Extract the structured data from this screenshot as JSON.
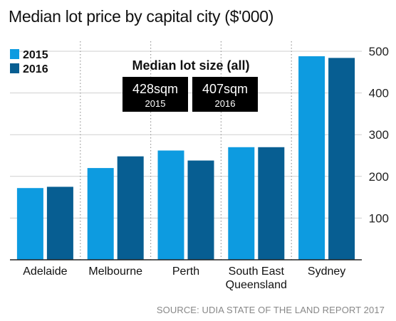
{
  "chart_data": {
    "type": "bar",
    "title": "Median lot price by capital city ($'000)",
    "categories": [
      "Adelaide",
      "Melbourne",
      "Perth",
      "South East Queensland",
      "Sydney"
    ],
    "category_lines": [
      [
        "Adelaide"
      ],
      [
        "Melbourne"
      ],
      [
        "Perth"
      ],
      [
        "South East",
        "Queensland"
      ],
      [
        "Sydney"
      ]
    ],
    "series": [
      {
        "name": "2015",
        "values": [
          172,
          220,
          262,
          270,
          488
        ]
      },
      {
        "name": "2016",
        "values": [
          175,
          248,
          238,
          270,
          484
        ]
      }
    ],
    "colors": [
      "#0d9be0",
      "#075e92"
    ],
    "ylim": [
      0,
      500
    ],
    "yticks": [
      100,
      200,
      300,
      400,
      500
    ],
    "grid": true,
    "y_axis_side": "right",
    "legend_position": "top-left",
    "source": "SOURCE: UDIA STATE OF THE LAND REPORT 2017"
  },
  "inset": {
    "heading": "Median lot size (all)",
    "items": [
      {
        "value": "428sqm",
        "year": "2015"
      },
      {
        "value": "407sqm",
        "year": "2016"
      }
    ]
  }
}
